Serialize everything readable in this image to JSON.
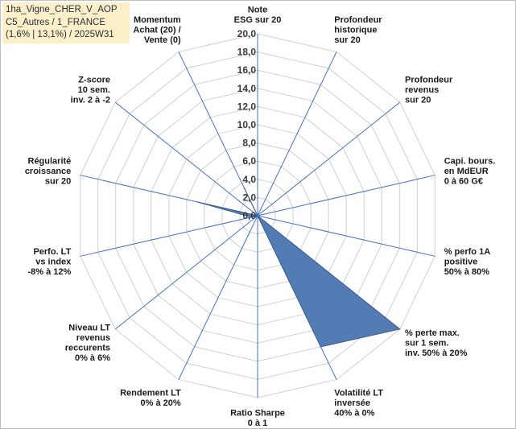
{
  "title_lines": [
    "1ha_Vigne_CHER_V_AOP",
    "C5_Autres / 1_FRANCE",
    "(1,6% | 13,1%) / 2025W31"
  ],
  "colors": {
    "fill": "#4a74b0",
    "grid": "#d0d0d0",
    "spokes": "#4472c4"
  },
  "chart_data": {
    "type": "radar",
    "rmin": 0,
    "rmax": 20,
    "ticks": [
      "0,0",
      "2,0",
      "4,0",
      "6,0",
      "8,0",
      "10,0",
      "12,0",
      "14,0",
      "16,0",
      "18,0",
      "20,0"
    ],
    "tick_values": [
      0,
      2,
      4,
      6,
      8,
      10,
      12,
      14,
      16,
      18,
      20
    ],
    "axes": [
      {
        "label": [
          "Note",
          "ESG sur 20"
        ],
        "value": 0
      },
      {
        "label": [
          "Profondeur",
          "historique",
          "sur 20"
        ],
        "value": 0
      },
      {
        "label": [
          "Profondeur",
          "revenus",
          "sur 20"
        ],
        "value": 0
      },
      {
        "label": [
          "Capi. bours.",
          "en MdEUR",
          "0 à 60 G€"
        ],
        "value": 0
      },
      {
        "label": [
          "% perfo 1A",
          "positive",
          "50% à 80%"
        ],
        "value": 0
      },
      {
        "label": [
          "% perte max.",
          "sur 1 sem.",
          "inv. 50% à 20%"
        ],
        "value": 20
      },
      {
        "label": [
          "Volatilité LT",
          "inversée",
          "40% à 0%"
        ],
        "value": 16
      },
      {
        "label": [
          "Ratio Sharpe",
          "0 à 1"
        ],
        "value": 0
      },
      {
        "label": [
          "Rendement LT",
          "0% à 20%"
        ],
        "value": 0
      },
      {
        "label": [
          "Niveau LT",
          "revenus",
          "reccurents",
          "0% à 6%"
        ],
        "value": 0
      },
      {
        "label": [
          "Perfo. LT",
          "vs index",
          "-8% à 12%"
        ],
        "value": 0.7
      },
      {
        "label": [
          "Régularité",
          "croissance",
          "sur 20"
        ],
        "value": 6.8
      },
      {
        "label": [
          "Z-score",
          "10 sem.",
          "inv. 2 à -2"
        ],
        "value": 0
      },
      {
        "label": [
          "Momentum",
          "Achat (20) /",
          "Vente (0)"
        ],
        "value": 3.4
      }
    ]
  }
}
